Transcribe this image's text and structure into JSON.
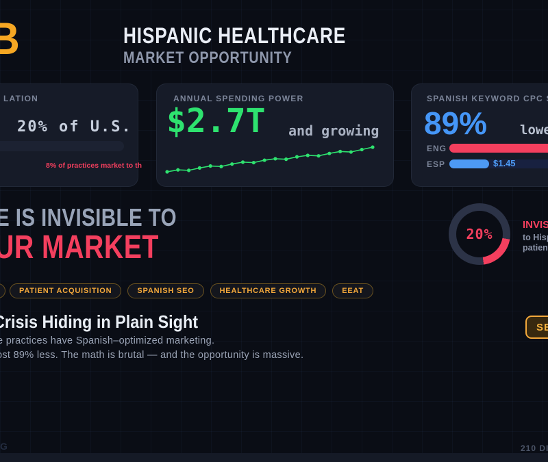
{
  "header": {
    "logo_letter": "B",
    "title": "HISPANIC HEALTHCARE",
    "subtitle": "MARKET OPPORTUNITY"
  },
  "cards": {
    "population": {
      "label": "LATION",
      "value": "20% of U.S.",
      "note": "8% of practices market to th",
      "note_color": "#f43f5e"
    },
    "spending": {
      "label": "ANNUAL SPENDING POWER",
      "value": "$2.7T",
      "suffix": "and growing",
      "accent": "#2ee26f",
      "trend": [
        2,
        4,
        3.5,
        6,
        8,
        7.5,
        10,
        12,
        11.5,
        14,
        15.5,
        15,
        17.5,
        19,
        18.5,
        21,
        23,
        22.5,
        25,
        27.5
      ]
    },
    "cpc": {
      "label": "SPANISH KEYWORD CPC SAV",
      "value": "89%",
      "suffix": "lowe",
      "accent": "#4596f7",
      "bars": [
        {
          "label": "ENG",
          "color": "#f43f5e",
          "value": ""
        },
        {
          "label": "ESP",
          "color": "#4d9af5",
          "value": "$1.45"
        }
      ]
    }
  },
  "hero": {
    "line1": "E IS INVISIBLE TO",
    "line2": "UR MARKET",
    "donut": {
      "label": "20%",
      "percent": 20,
      "color": "#f43f5e",
      "track": "#2c3347"
    },
    "side_title": "INVISIB",
    "side_line1": "to Hisp",
    "side_line2": "patient"
  },
  "tags": [
    "PATIENT ACQUISITION",
    "SPANISH SEO",
    "HEALTHCARE GROWTH",
    "EEAT"
  ],
  "crisis": {
    "heading": "Crisis Hiding in Plain Sight",
    "line1": "e practices have Spanish–optimized marketing.",
    "line2": "ost 89% less. The math is brutal — and the opportunity is massive.",
    "cta_label": "SE"
  },
  "footer": {
    "left": "G",
    "right": "210 DIG"
  },
  "colors": {
    "background": "#0a0d15",
    "card": "#161b28",
    "accent_orange": "#f3a83b",
    "accent_red": "#f43f5e",
    "accent_green": "#2ee26f",
    "accent_blue": "#4596f7"
  }
}
